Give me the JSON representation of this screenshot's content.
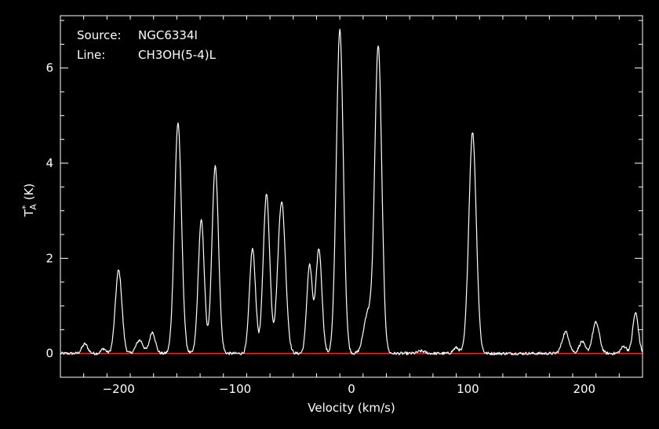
{
  "annotations": {
    "source_label": "Source:",
    "source_value": "NGC6334I",
    "line_label": "Line:",
    "line_value": "CH3OH(5-4)L"
  },
  "chart_data": {
    "type": "line",
    "xlabel": "Velocity (km/s)",
    "ylabel": {
      "base": "T",
      "sup": "*",
      "sub": "A",
      "unit": " (K)"
    },
    "xlim": [
      -250,
      250
    ],
    "ylim": [
      -0.5,
      7.1
    ],
    "xticks": [
      -200,
      -100,
      0,
      100,
      200
    ],
    "yticks": [
      0,
      2,
      4,
      6
    ],
    "grid": false,
    "baseline": {
      "y": 0,
      "color": "#ff2020"
    },
    "colors": {
      "background": "#000000",
      "axes": "#ffffff",
      "spectrum": "#ffffff"
    },
    "series": [
      {
        "peaks": [
          {
            "x": -229,
            "y": 0.2,
            "w": 2.5
          },
          {
            "x": -213,
            "y": 0.1,
            "w": 2.0
          },
          {
            "x": -200,
            "y": 1.75,
            "w": 2.8
          },
          {
            "x": -182,
            "y": 0.28,
            "w": 3.0
          },
          {
            "x": -171,
            "y": 0.45,
            "w": 2.5
          },
          {
            "x": -149,
            "y": 4.85,
            "w": 3.0
          },
          {
            "x": -129,
            "y": 2.8,
            "w": 2.6
          },
          {
            "x": -117,
            "y": 3.95,
            "w": 2.8
          },
          {
            "x": -85,
            "y": 2.2,
            "w": 2.6
          },
          {
            "x": -73,
            "y": 3.35,
            "w": 2.8
          },
          {
            "x": -60,
            "y": 3.2,
            "w": 3.3
          },
          {
            "x": -36,
            "y": 1.85,
            "w": 2.4
          },
          {
            "x": -28,
            "y": 2.2,
            "w": 2.6
          },
          {
            "x": -10,
            "y": 6.8,
            "w": 3.0
          },
          {
            "x": 14,
            "y": 0.85,
            "w": 3.5
          },
          {
            "x": 23,
            "y": 6.45,
            "w": 3.0
          },
          {
            "x": 60,
            "y": 0.05,
            "w": 3.0
          },
          {
            "x": 90,
            "y": 0.12,
            "w": 2.5
          },
          {
            "x": 104,
            "y": 4.65,
            "w": 3.2
          },
          {
            "x": 184,
            "y": 0.45,
            "w": 3.0
          },
          {
            "x": 198,
            "y": 0.25,
            "w": 2.5
          },
          {
            "x": 210,
            "y": 0.65,
            "w": 3.0
          },
          {
            "x": 234,
            "y": 0.15,
            "w": 2.5
          },
          {
            "x": 244,
            "y": 0.85,
            "w": 2.4
          }
        ]
      }
    ]
  }
}
